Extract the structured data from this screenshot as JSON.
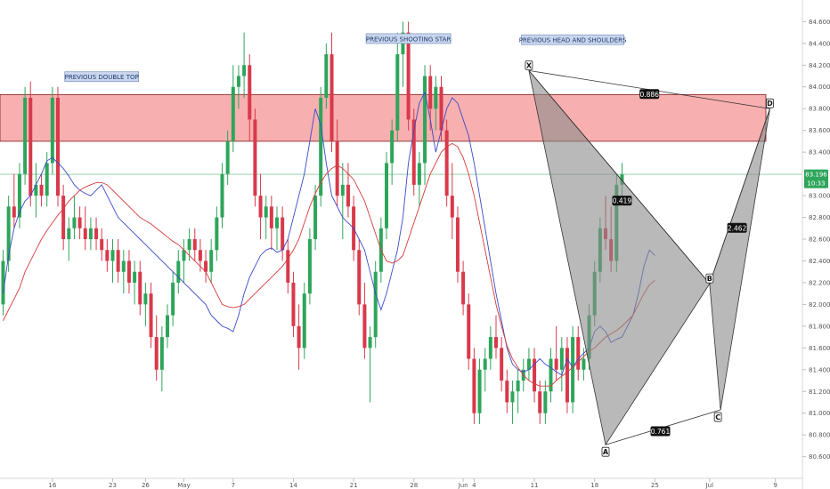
{
  "chart_data": {
    "type": "candlestick",
    "y_axis": {
      "ticks": [
        "84.600",
        "84.400",
        "84.200",
        "84.000",
        "83.800",
        "83.600",
        "83.400",
        "83.000",
        "82.800",
        "82.600",
        "82.400",
        "82.200",
        "82.000",
        "81.800",
        "81.600",
        "81.400",
        "81.200",
        "81.000",
        "80.800",
        "80.600"
      ],
      "ylim": [
        80.45,
        84.75
      ]
    },
    "x_axis": {
      "ticks": [
        {
          "label": "16",
          "bar": 9
        },
        {
          "label": "23",
          "bar": 20
        },
        {
          "label": "26",
          "bar": 26
        },
        {
          "label": "May",
          "bar": 33
        },
        {
          "label": "7",
          "bar": 42
        },
        {
          "label": "14",
          "bar": 53
        },
        {
          "label": "21",
          "bar": 64
        },
        {
          "label": "28",
          "bar": 75
        },
        {
          "label": "Jun",
          "bar": 84
        },
        {
          "label": "4",
          "bar": 86
        },
        {
          "label": "11",
          "bar": 97
        },
        {
          "label": "18",
          "bar": 108
        },
        {
          "label": "25",
          "bar": 119
        },
        {
          "label": "Jul",
          "bar": 129
        },
        {
          "label": "9",
          "bar": 141
        }
      ]
    },
    "resistance_zone": {
      "low": 83.5,
      "high": 83.93,
      "color": "#f26d6d"
    },
    "horizontal_line": {
      "price": 83.196,
      "color": "#2ea55a"
    },
    "last_price_label": {
      "price": "83.196",
      "timer": "10:33",
      "color": "#2ea55a"
    },
    "annotations": [
      {
        "text": "PREVIOUS DOUBLE TOP",
        "bar": 18,
        "price": 84.09
      },
      {
        "text": "PREVIOUS SHOOTING STAR",
        "bar": 74,
        "price": 84.44
      },
      {
        "text": "PREVIOUS HEAD AND SHOULDERS",
        "bar": 104,
        "price": 84.43
      }
    ],
    "harmonic_pattern": {
      "points": [
        {
          "name": "X",
          "bar": 96,
          "price": 84.15
        },
        {
          "name": "A",
          "bar": 110,
          "price": 80.71
        },
        {
          "name": "B",
          "bar": 129,
          "price": 82.19
        },
        {
          "name": "C",
          "bar": 131,
          "price": 81.03
        },
        {
          "name": "D",
          "bar": 140,
          "price": 83.8
        }
      ],
      "ratios": [
        {
          "value": "0.886",
          "bar": 118,
          "price": 83.93
        },
        {
          "value": "0.419",
          "bar": 113,
          "price": 82.95
        },
        {
          "value": "0.761",
          "bar": 120,
          "price": 80.83
        },
        {
          "value": "2.462",
          "bar": 134,
          "price": 82.7
        }
      ],
      "fill_color": "#8a8a8a"
    },
    "series": [
      {
        "name": "",
        "type": "moving-average",
        "color": "#3a49c8",
        "values": [
          82.1,
          82.45,
          82.7,
          82.85,
          82.95,
          83.0,
          83.1,
          83.2,
          83.32,
          83.35,
          83.3,
          83.25,
          83.18,
          83.1,
          83.05,
          83.02,
          83.0,
          83.05,
          83.1,
          83.0,
          82.9,
          82.8,
          82.75,
          82.7,
          82.65,
          82.6,
          82.55,
          82.5,
          82.45,
          82.4,
          82.35,
          82.3,
          82.25,
          82.2,
          82.15,
          82.1,
          82.05,
          82.0,
          81.9,
          81.85,
          81.8,
          81.78,
          81.75,
          81.9,
          82.1,
          82.25,
          82.35,
          82.45,
          82.5,
          82.52,
          82.48,
          82.5,
          82.6,
          82.8,
          83.0,
          83.2,
          83.5,
          83.8,
          83.65,
          83.3,
          83.0,
          82.9,
          82.8,
          82.75,
          82.7,
          82.6,
          82.5,
          82.3,
          82.1,
          81.95,
          82.1,
          82.3,
          82.5,
          82.8,
          83.3,
          83.6,
          83.85,
          83.95,
          83.7,
          83.4,
          83.6,
          83.8,
          83.9,
          83.85,
          83.7,
          83.55,
          83.3,
          83.0,
          82.7,
          82.4,
          82.1,
          81.85,
          81.6,
          81.45,
          81.4,
          81.38,
          81.4,
          81.45,
          81.5,
          81.45,
          81.42,
          81.38,
          81.35,
          81.5,
          81.42,
          81.5,
          81.55,
          81.6,
          81.75,
          81.8,
          81.75,
          81.65,
          81.68,
          81.7,
          81.8,
          81.9,
          82.1,
          82.35,
          82.5,
          82.45
        ]
      },
      {
        "name": "",
        "type": "moving-average",
        "color": "#d63a3a",
        "values": [
          81.85,
          81.95,
          82.05,
          82.15,
          82.3,
          82.4,
          82.5,
          82.6,
          82.68,
          82.75,
          82.82,
          82.88,
          82.95,
          83.0,
          83.05,
          83.08,
          83.1,
          83.12,
          83.12,
          83.1,
          83.05,
          83.0,
          82.95,
          82.9,
          82.85,
          82.8,
          82.77,
          82.74,
          82.7,
          82.66,
          82.62,
          82.58,
          82.55,
          82.5,
          82.45,
          82.4,
          82.35,
          82.3,
          82.2,
          82.1,
          82.0,
          81.98,
          81.97,
          81.98,
          82.0,
          82.05,
          82.1,
          82.15,
          82.2,
          82.25,
          82.3,
          82.35,
          82.42,
          82.5,
          82.6,
          82.75,
          82.9,
          83.02,
          83.12,
          83.2,
          83.25,
          83.28,
          83.25,
          83.2,
          83.15,
          83.05,
          82.95,
          82.8,
          82.65,
          82.5,
          82.4,
          82.38,
          82.4,
          82.45,
          82.6,
          82.75,
          82.9,
          83.05,
          83.2,
          83.3,
          83.4,
          83.45,
          83.48,
          83.45,
          83.35,
          83.2,
          83.0,
          82.75,
          82.5,
          82.25,
          82.0,
          81.8,
          81.62,
          81.5,
          81.42,
          81.35,
          81.3,
          81.27,
          81.25,
          81.25,
          81.25,
          81.3,
          81.34,
          81.38,
          81.42,
          81.47,
          81.52,
          81.57,
          81.6,
          81.65,
          81.7,
          81.73,
          81.76,
          81.8,
          81.85,
          81.9,
          82.0,
          82.1,
          82.18,
          82.22
        ]
      }
    ],
    "candles": [
      [
        82.0,
        82.5,
        81.9,
        82.4
      ],
      [
        82.4,
        83.0,
        82.3,
        82.9
      ],
      [
        82.9,
        83.2,
        82.7,
        82.8
      ],
      [
        82.8,
        83.3,
        82.7,
        83.2
      ],
      [
        83.2,
        84.0,
        83.1,
        83.9
      ],
      [
        83.9,
        84.05,
        82.9,
        83.0
      ],
      [
        83.0,
        83.3,
        82.8,
        83.1
      ],
      [
        83.1,
        83.2,
        82.9,
        83.0
      ],
      [
        83.0,
        83.4,
        82.9,
        83.3
      ],
      [
        83.3,
        84.0,
        83.2,
        83.9
      ],
      [
        83.9,
        84.0,
        82.9,
        83.0
      ],
      [
        83.0,
        83.1,
        82.5,
        82.6
      ],
      [
        82.6,
        82.8,
        82.4,
        82.7
      ],
      [
        82.7,
        83.0,
        82.6,
        82.8
      ],
      [
        82.8,
        82.9,
        82.6,
        82.7
      ],
      [
        82.7,
        82.9,
        82.5,
        82.6
      ],
      [
        82.6,
        82.8,
        82.5,
        82.7
      ],
      [
        82.7,
        82.8,
        82.5,
        82.6
      ],
      [
        82.6,
        82.7,
        82.4,
        82.5
      ],
      [
        82.5,
        82.6,
        82.3,
        82.4
      ],
      [
        82.4,
        82.6,
        82.2,
        82.5
      ],
      [
        82.5,
        82.6,
        82.2,
        82.3
      ],
      [
        82.3,
        82.5,
        82.1,
        82.4
      ],
      [
        82.4,
        82.5,
        82.1,
        82.2
      ],
      [
        82.2,
        82.4,
        82.0,
        82.3
      ],
      [
        82.3,
        82.4,
        81.9,
        82.0
      ],
      [
        82.0,
        82.2,
        81.8,
        82.1
      ],
      [
        82.1,
        82.2,
        81.6,
        81.7
      ],
      [
        81.7,
        81.9,
        81.3,
        81.4
      ],
      [
        81.4,
        81.8,
        81.2,
        81.7
      ],
      [
        81.7,
        82.0,
        81.6,
        81.9
      ],
      [
        81.9,
        82.3,
        81.8,
        82.2
      ],
      [
        82.2,
        82.5,
        82.1,
        82.4
      ],
      [
        82.4,
        82.6,
        82.2,
        82.5
      ],
      [
        82.5,
        82.7,
        82.4,
        82.6
      ],
      [
        82.6,
        82.7,
        82.4,
        82.5
      ],
      [
        82.5,
        82.6,
        82.3,
        82.4
      ],
      [
        82.4,
        82.5,
        82.2,
        82.3
      ],
      [
        82.3,
        82.6,
        82.2,
        82.5
      ],
      [
        82.5,
        82.9,
        82.4,
        82.8
      ],
      [
        82.8,
        83.3,
        82.7,
        83.2
      ],
      [
        83.2,
        83.6,
        83.1,
        83.5
      ],
      [
        83.5,
        84.2,
        83.4,
        84.0
      ],
      [
        84.0,
        84.2,
        83.8,
        84.1
      ],
      [
        84.1,
        84.5,
        83.9,
        84.2
      ],
      [
        84.2,
        84.3,
        83.5,
        83.7
      ],
      [
        83.7,
        83.8,
        82.9,
        83.0
      ],
      [
        83.0,
        83.2,
        82.6,
        82.8
      ],
      [
        82.8,
        83.0,
        82.6,
        82.9
      ],
      [
        82.9,
        83.0,
        82.5,
        82.7
      ],
      [
        82.7,
        82.9,
        82.5,
        82.8
      ],
      [
        82.8,
        82.9,
        82.4,
        82.5
      ],
      [
        82.5,
        82.6,
        82.1,
        82.2
      ],
      [
        82.2,
        82.3,
        81.7,
        81.8
      ],
      [
        81.8,
        82.0,
        81.4,
        81.6
      ],
      [
        81.6,
        82.2,
        81.5,
        82.1
      ],
      [
        82.1,
        82.7,
        82.0,
        82.6
      ],
      [
        82.6,
        83.1,
        82.5,
        83.0
      ],
      [
        83.0,
        84.0,
        82.9,
        83.9
      ],
      [
        83.9,
        84.4,
        83.8,
        84.3
      ],
      [
        84.3,
        84.5,
        83.4,
        83.5
      ],
      [
        83.5,
        83.7,
        82.9,
        83.0
      ],
      [
        83.0,
        83.3,
        82.6,
        83.1
      ],
      [
        83.1,
        83.3,
        82.8,
        82.9
      ],
      [
        82.9,
        83.0,
        82.4,
        82.5
      ],
      [
        82.5,
        82.6,
        81.9,
        82.0
      ],
      [
        82.0,
        82.2,
        81.5,
        81.6
      ],
      [
        81.6,
        81.8,
        81.1,
        81.7
      ],
      [
        81.7,
        82.4,
        81.6,
        82.3
      ],
      [
        82.3,
        82.8,
        82.2,
        82.7
      ],
      [
        82.7,
        83.4,
        82.6,
        83.3
      ],
      [
        83.3,
        83.7,
        83.1,
        83.6
      ],
      [
        83.6,
        84.5,
        83.5,
        84.3
      ],
      [
        84.3,
        84.6,
        84.0,
        84.5
      ],
      [
        84.5,
        84.6,
        83.6,
        83.7
      ],
      [
        83.7,
        83.8,
        83.0,
        83.1
      ],
      [
        83.1,
        83.4,
        82.9,
        83.3
      ],
      [
        83.3,
        84.2,
        83.1,
        84.1
      ],
      [
        84.1,
        84.2,
        83.6,
        83.8
      ],
      [
        83.8,
        84.1,
        83.6,
        84.0
      ],
      [
        84.0,
        84.1,
        83.5,
        83.6
      ],
      [
        83.6,
        83.7,
        82.9,
        83.0
      ],
      [
        83.0,
        83.3,
        82.6,
        82.8
      ],
      [
        82.8,
        82.9,
        82.2,
        82.3
      ],
      [
        82.3,
        82.4,
        81.9,
        82.0
      ],
      [
        82.0,
        82.1,
        81.4,
        81.5
      ],
      [
        81.5,
        81.6,
        80.9,
        81.0
      ],
      [
        81.0,
        81.5,
        80.9,
        81.4
      ],
      [
        81.4,
        81.6,
        81.2,
        81.5
      ],
      [
        81.5,
        81.8,
        81.4,
        81.7
      ],
      [
        81.7,
        81.9,
        81.5,
        81.6
      ],
      [
        81.6,
        81.7,
        81.2,
        81.3
      ],
      [
        81.3,
        81.4,
        81.0,
        81.1
      ],
      [
        81.1,
        81.3,
        80.9,
        81.2
      ],
      [
        81.2,
        81.4,
        81.0,
        81.3
      ],
      [
        81.3,
        81.5,
        81.2,
        81.4
      ],
      [
        81.4,
        81.6,
        81.3,
        81.5
      ],
      [
        81.5,
        81.6,
        81.1,
        81.2
      ],
      [
        81.2,
        81.3,
        80.9,
        81.0
      ],
      [
        81.0,
        81.3,
        80.9,
        81.2
      ],
      [
        81.2,
        81.6,
        81.1,
        81.5
      ],
      [
        81.5,
        81.8,
        81.3,
        81.4
      ],
      [
        81.4,
        81.7,
        81.2,
        81.6
      ],
      [
        81.6,
        81.7,
        81.0,
        81.1
      ],
      [
        81.1,
        81.8,
        81.0,
        81.7
      ],
      [
        81.7,
        81.8,
        81.3,
        81.4
      ],
      [
        81.4,
        81.6,
        81.3,
        81.5
      ],
      [
        81.5,
        82.0,
        81.4,
        81.9
      ],
      [
        81.9,
        82.4,
        81.8,
        82.3
      ],
      [
        82.3,
        82.8,
        82.2,
        82.7
      ],
      [
        82.7,
        83.0,
        82.5,
        82.6
      ],
      [
        82.6,
        82.9,
        82.3,
        82.4
      ],
      [
        82.4,
        83.2,
        82.3,
        83.1
      ],
      [
        83.1,
        83.3,
        83.0,
        83.196
      ]
    ]
  }
}
